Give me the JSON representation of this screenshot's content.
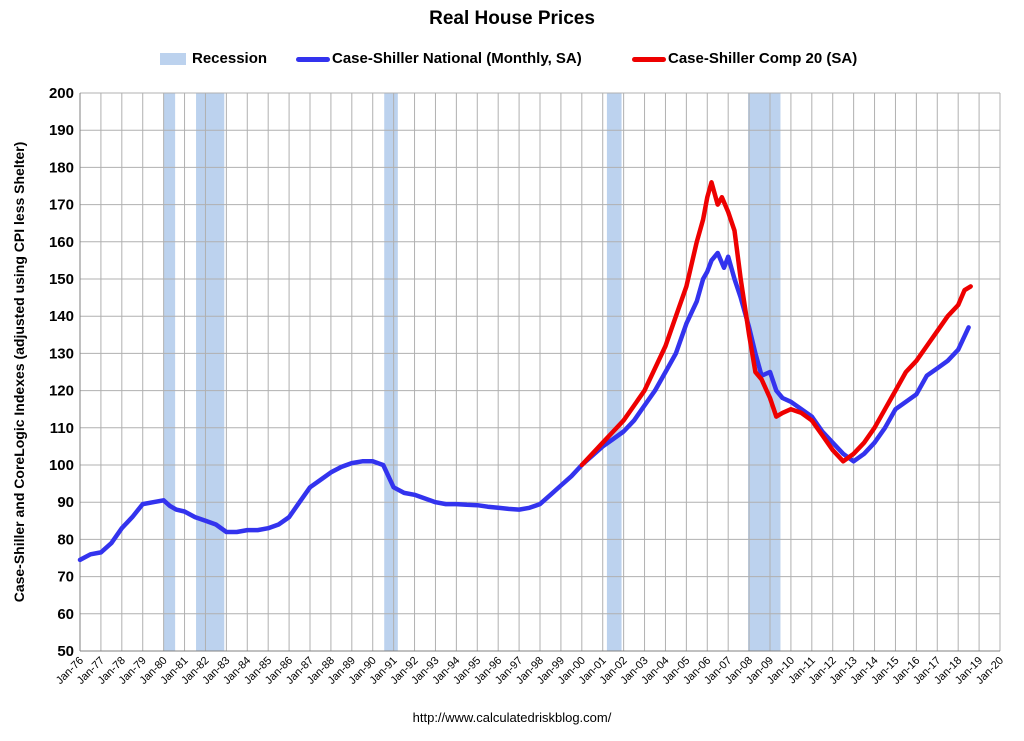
{
  "chart_data": {
    "type": "line",
    "title": "Real House Prices",
    "xlabel": "",
    "ylabel": "Case-Shiller and CoreLogic Indexes (adjusted using CPI less Shelter)",
    "source": "http://www.calculatedriskblog.com/",
    "ylim": [
      50,
      200
    ],
    "yticks": [
      50,
      60,
      70,
      80,
      90,
      100,
      110,
      120,
      130,
      140,
      150,
      160,
      170,
      180,
      190,
      200
    ],
    "xlim": [
      1976,
      2020
    ],
    "xticks": [
      "Jan-76",
      "Jan-77",
      "Jan-78",
      "Jan-79",
      "Jan-80",
      "Jan-81",
      "Jan-82",
      "Jan-83",
      "Jan-84",
      "Jan-85",
      "Jan-86",
      "Jan-87",
      "Jan-88",
      "Jan-89",
      "Jan-90",
      "Jan-91",
      "Jan-92",
      "Jan-93",
      "Jan-94",
      "Jan-95",
      "Jan-96",
      "Jan-97",
      "Jan-98",
      "Jan-99",
      "Jan-00",
      "Jan-01",
      "Jan-02",
      "Jan-03",
      "Jan-04",
      "Jan-05",
      "Jan-06",
      "Jan-07",
      "Jan-08",
      "Jan-09",
      "Jan-10",
      "Jan-11",
      "Jan-12",
      "Jan-13",
      "Jan-14",
      "Jan-15",
      "Jan-16",
      "Jan-17",
      "Jan-18",
      "Jan-19",
      "Jan-20"
    ],
    "grid": true,
    "legend_position": "top",
    "legend": {
      "recession": "Recession",
      "national": "Case-Shiller National (Monthly, SA)",
      "comp20": "Case-Shiller Comp 20  (SA)"
    },
    "colors": {
      "recession": "#bcd2ee",
      "national": "#3333ee",
      "comp20": "#ee0000",
      "grid": "#b0b0b0"
    },
    "recessions": [
      [
        1980.0,
        1980.55
      ],
      [
        1981.55,
        1982.9
      ],
      [
        1990.55,
        1991.2
      ],
      [
        2001.2,
        2001.9
      ],
      [
        2007.95,
        2009.5
      ]
    ],
    "series": [
      {
        "name": "Case-Shiller National (Monthly, SA)",
        "x": [
          1976.0,
          1976.5,
          1977.0,
          1977.5,
          1978.0,
          1978.5,
          1979.0,
          1979.5,
          1980.0,
          1980.3,
          1980.6,
          1981.0,
          1981.5,
          1982.0,
          1982.5,
          1983.0,
          1983.5,
          1984.0,
          1984.5,
          1985.0,
          1985.5,
          1986.0,
          1986.5,
          1987.0,
          1987.5,
          1988.0,
          1988.5,
          1989.0,
          1989.5,
          1990.0,
          1990.5,
          1991.0,
          1991.5,
          1992.0,
          1992.5,
          1993.0,
          1993.5,
          1994.0,
          1994.5,
          1995.0,
          1995.5,
          1996.0,
          1996.5,
          1997.0,
          1997.5,
          1998.0,
          1998.5,
          1999.0,
          1999.5,
          2000.0,
          2000.5,
          2001.0,
          2001.5,
          2002.0,
          2002.5,
          2003.0,
          2003.5,
          2004.0,
          2004.5,
          2005.0,
          2005.5,
          2005.8,
          2006.0,
          2006.2,
          2006.5,
          2006.8,
          2007.0,
          2007.3,
          2007.6,
          2008.0,
          2008.3,
          2008.6,
          2009.0,
          2009.3,
          2009.6,
          2010.0,
          2010.5,
          2011.0,
          2011.5,
          2012.0,
          2012.5,
          2013.0,
          2013.5,
          2014.0,
          2014.5,
          2015.0,
          2015.5,
          2016.0,
          2016.5,
          2017.0,
          2017.5,
          2018.0,
          2018.5
        ],
        "y": [
          74.5,
          76,
          76.5,
          79,
          83,
          86,
          89.5,
          90,
          90.5,
          89,
          88,
          87.5,
          86,
          85,
          84,
          82,
          82,
          82.5,
          82.5,
          83,
          84,
          86,
          90,
          94,
          96,
          98,
          99.5,
          100.5,
          101,
          101,
          100,
          94,
          92.5,
          92,
          91,
          90,
          89.5,
          89.5,
          89.3,
          89.2,
          88.8,
          88.5,
          88.2,
          88,
          88.5,
          89.5,
          92,
          94.5,
          97,
          100,
          102.5,
          105,
          107,
          109,
          112,
          116,
          120,
          125,
          130,
          138,
          144,
          150,
          152,
          155,
          157,
          153,
          156,
          150,
          145,
          137,
          130,
          124,
          125,
          120,
          118,
          117,
          115,
          113,
          109,
          106,
          103,
          101,
          103,
          106,
          110,
          115,
          117,
          119,
          124,
          126,
          128,
          131,
          137
        ]
      },
      {
        "name": "Case-Shiller Comp 20  (SA)",
        "x": [
          2000.0,
          2000.5,
          2001.0,
          2001.5,
          2002.0,
          2002.5,
          2003.0,
          2003.5,
          2004.0,
          2004.5,
          2005.0,
          2005.5,
          2005.8,
          2006.0,
          2006.2,
          2006.5,
          2006.7,
          2007.0,
          2007.3,
          2007.6,
          2008.0,
          2008.3,
          2008.6,
          2009.0,
          2009.3,
          2009.6,
          2010.0,
          2010.5,
          2011.0,
          2011.5,
          2012.0,
          2012.5,
          2013.0,
          2013.5,
          2014.0,
          2014.5,
          2015.0,
          2015.5,
          2016.0,
          2016.5,
          2017.0,
          2017.5,
          2018.0,
          2018.3,
          2018.6
        ],
        "y": [
          100,
          103,
          106,
          109,
          112,
          116,
          120,
          126,
          132,
          140,
          148,
          160,
          166,
          172,
          176,
          170,
          172,
          168,
          163,
          150,
          135,
          125,
          123,
          118,
          113,
          114,
          115,
          114,
          112,
          108,
          104,
          101,
          103,
          106,
          110,
          115,
          120,
          125,
          128,
          132,
          136,
          140,
          143,
          147,
          148
        ]
      }
    ]
  }
}
